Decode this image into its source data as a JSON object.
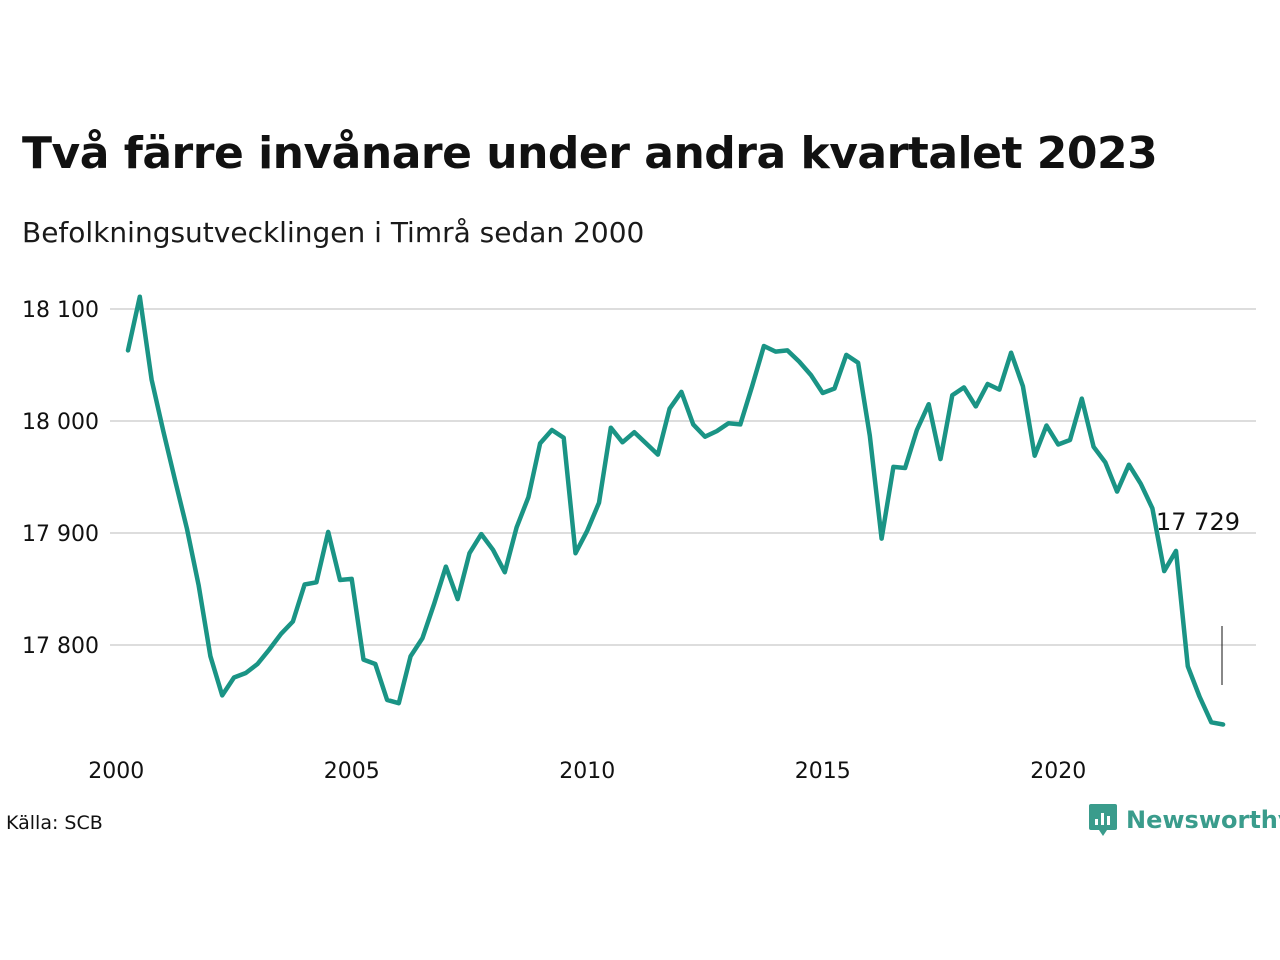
{
  "title": "Två färre invånare under andra kvartalet 2023",
  "subtitle": "Befolkningsutvecklingen i Timrå sedan 2000",
  "source": "Källa: SCB",
  "brand": {
    "name": "Newsworthy",
    "color": "#3a9c8c",
    "icon": "newsworthy-logo-icon"
  },
  "chart_data": {
    "type": "line",
    "ylim": [
      17720,
      18110
    ],
    "xlim": [
      2000,
      2023.75
    ],
    "y_ticks": [
      17800,
      17900,
      18000,
      18100
    ],
    "y_tick_labels": [
      "17 800",
      "17 900",
      "18 000",
      "18 100"
    ],
    "x_ticks": [
      2000,
      2005,
      2010,
      2015,
      2020
    ],
    "x_tick_labels": [
      "2000",
      "2005",
      "2010",
      "2015",
      "2020"
    ],
    "grid": true,
    "line_color": "#1a9485",
    "end_label": "17 729",
    "series": [
      {
        "start": 2000.25,
        "step": 0.25,
        "values": [
          18063,
          18111,
          18037,
          17991,
          17947,
          17904,
          17853,
          17790,
          17755,
          17771,
          17775,
          17783,
          17796,
          17810,
          17821,
          17854,
          17856,
          17901,
          17858,
          17859,
          17787,
          17783,
          17751,
          17748,
          17790,
          17806,
          17837,
          17870,
          17841,
          17882,
          17899,
          17885,
          17865,
          17905,
          17932,
          17980,
          17992,
          17985,
          17882,
          17902,
          17927,
          17994,
          17981,
          17990,
          17980,
          17970,
          18011,
          18026,
          17997,
          17986,
          17991,
          17998,
          17997,
          18031,
          18067,
          18062,
          18063,
          18053,
          18041,
          18025,
          18029,
          18059,
          18052,
          17987,
          17895,
          17959,
          17958,
          17992,
          18015,
          17966,
          18023,
          18030,
          18013,
          18033,
          18028,
          18061,
          18031,
          17969,
          17996,
          17979,
          17983,
          18020,
          17977,
          17963,
          17937,
          17961,
          17944,
          17922,
          17866,
          17884,
          17781,
          17754,
          17731,
          17729
        ]
      }
    ]
  }
}
